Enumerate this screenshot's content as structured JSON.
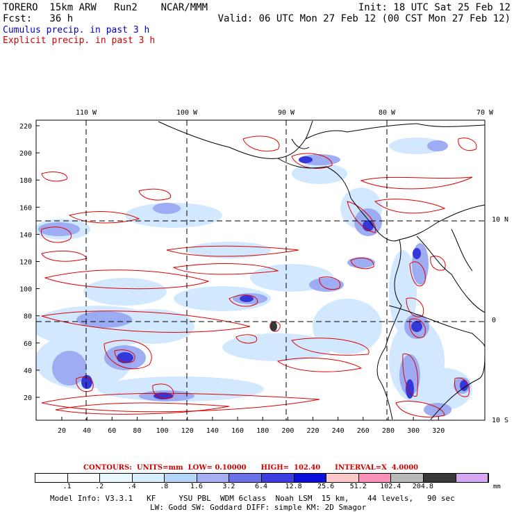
{
  "header": {
    "model": "TORERO  15km ARW   Run2    NCAR/MMM",
    "init": "Init: 18 UTC Sat 25 Feb 12",
    "fcst": "Fcst:   36 h",
    "valid": "Valid: 06 UTC Mon 27 Feb 12 (00 CST Mon 27 Feb 12)",
    "cumulus": "Cumulus precip. in past 3 h",
    "explicit": "Explicit precip. in past 3 h"
  },
  "colors": {
    "cumulus_text": "#0000cc",
    "explicit_text": "#cc0000",
    "contour": "#e00000",
    "coast": "#000000",
    "shade_light": "#cfe7ff",
    "shade_mid": "#9aa9f2",
    "shade_dark": "#4a50e0",
    "shade_core": "#1a1ac8"
  },
  "map": {
    "top_lon_labels": [
      "110 W",
      "100 W",
      "90 W",
      "80 W",
      "70 W"
    ],
    "right_lat_labels": [
      "10 N",
      "0",
      "10 S"
    ],
    "left_ticks": [
      "220",
      "200",
      "180",
      "160",
      "140",
      "120",
      "100",
      "80",
      "60",
      "40",
      "20"
    ],
    "bottom_ticks": [
      "20",
      "40",
      "60",
      "80",
      "100",
      "120",
      "140",
      "160",
      "180",
      "200",
      "220",
      "240",
      "260",
      "280",
      "300",
      "320"
    ]
  },
  "colorbar": {
    "contours_line": "CONTOURS:  UNITS=mm  LOW= 0.10000      HIGH=  102.40      INTERVAL=X  4.0000",
    "labels": [
      ".1",
      ".2",
      ".4",
      ".8",
      "1.6",
      "3.2",
      "6.4",
      "12.8",
      "25.6",
      "51.2",
      "102.4",
      "204.8"
    ],
    "unit": "mm",
    "swatches": [
      "#ffffff",
      "#ffffff",
      "#e9f7ff",
      "#d6eeff",
      "#b4d6f8",
      "#a8aef2",
      "#6a72e6",
      "#3c3ce0",
      "#0a10d8",
      "#ffc8c8",
      "#f890b8",
      "#b8b8b8",
      "#383838",
      "#d6a8f4"
    ]
  },
  "footer": {
    "line1": "Model Info: V3.3.1   KF     YSU PBL  WDM 6class  Noah LSM  15 km,    44 levels,   90 sec",
    "line2": "LW: Godd SW: Goddard DIFF: simple KM: 2D Smagor"
  }
}
